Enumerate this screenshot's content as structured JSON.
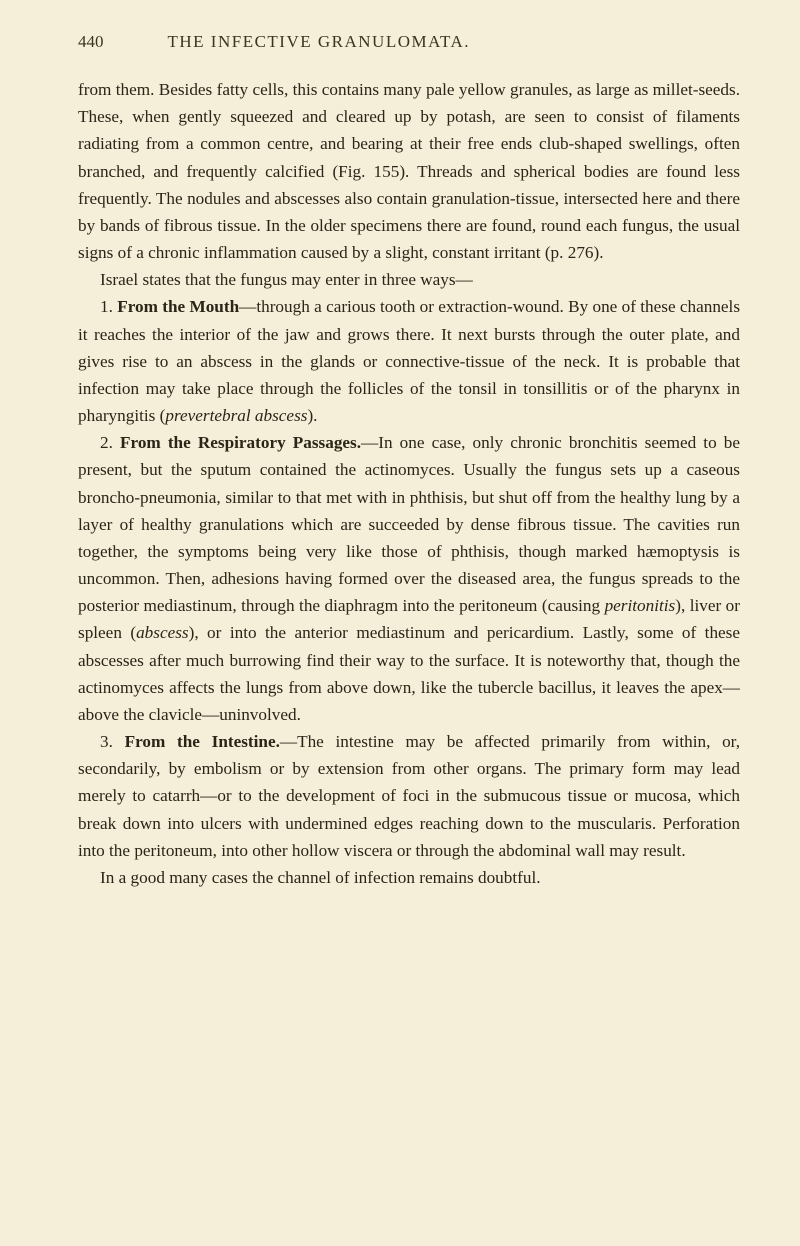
{
  "header": {
    "page_number": "440",
    "title": "THE INFECTIVE GRANULOMATA."
  },
  "paragraphs": {
    "p1_a": "from them. Besides fatty cells, this contains many pale yellow granules, as large as millet-seeds. These, when gently squeezed and cleared up by potash, are seen to consist of filaments radiating from a common centre, and bearing at their free ends club-shaped swellings, often branched, and frequently calcified (Fig. 155). Threads and spherical bodies are found less frequently. The nodules and abscesses also contain granulation-tissue, intersected here and there by bands of fibrous tissue. In the older specimens there are found, round each fungus, the usual signs of a chronic inflammation caused by a slight, constant irritant (p. 276).",
    "p2": "Israel states that the fungus may enter in three ways—",
    "p3_num": "1. ",
    "p3_bold": "From the Mouth",
    "p3_rest_a": "—through a carious tooth or extraction-wound. By one of these channels it reaches the interior of the jaw and grows there. It next bursts through the outer plate, and gives rise to an abscess in the glands or connective-tissue of the neck. It is probable that infection may take place through the follicles of the tonsil in tonsillitis or of the pharynx in pharyngitis (",
    "p3_italic1": "prevertebral abscess",
    "p3_rest_b": ").",
    "p4_num": "2. ",
    "p4_bold": "From the Respiratory Passages.",
    "p4_rest_a": "—In one case, only chronic bronchitis seemed to be present, but the sputum contained the actinomyces. Usually the fungus sets up a caseous broncho-pneumonia, similar to that met with in phthisis, but shut off from the healthy lung by a layer of healthy granulations which are succeeded by dense fibrous tissue. The cavities run together, the symptoms being very like those of phthisis, though marked hæmoptysis is uncommon. Then, adhesions having formed over the diseased area, the fungus spreads to the posterior mediastinum, through the diaphragm into the peritoneum (causing ",
    "p4_italic1": "peritonitis",
    "p4_rest_b": "), liver or spleen (",
    "p4_italic2": "abscess",
    "p4_rest_c": "), or into the anterior mediastinum and pericardium. Lastly, some of these abscesses after much burrowing find their way to the surface. It is noteworthy that, though the actinomyces affects the lungs from above down, like the tubercle bacillus, it leaves the apex—above the clavicle—uninvolved.",
    "p5_num": "3. ",
    "p5_bold": "From the Intestine.",
    "p5_rest": "—The intestine may be affected primarily from within, or, secondarily, by embolism or by extension from other organs. The primary form may lead merely to catarrh—or to the development of foci in the submucous tissue or mucosa, which break down into ulcers with undermined edges reaching down to the muscularis. Perforation into the peritoneum, into other hollow viscera or through the abdominal wall may result.",
    "p6": "In a good many cases the channel of infection remains doubtful."
  },
  "colors": {
    "background": "#f5eed8",
    "text": "#2a2518",
    "header_text": "#3a3420"
  },
  "typography": {
    "body_fontsize": 17.2,
    "header_fontsize": 17,
    "line_height": 1.58
  }
}
